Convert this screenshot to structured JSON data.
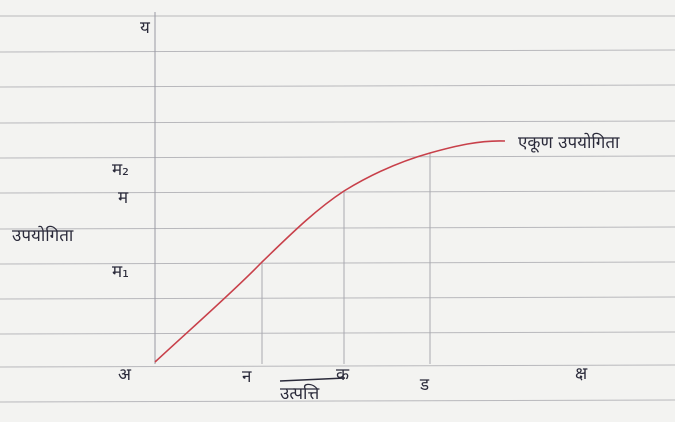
{
  "axes": {
    "y_end": "य",
    "x_end": "क्ष",
    "origin": "अ",
    "y_title": "उपयोगिता",
    "x_title": "उत्पत्ति"
  },
  "y_points": [
    "म₂",
    "म",
    "म₁"
  ],
  "x_points": [
    "न",
    "क",
    "ड"
  ],
  "curve_label": "एकूण उपयोगिता"
}
